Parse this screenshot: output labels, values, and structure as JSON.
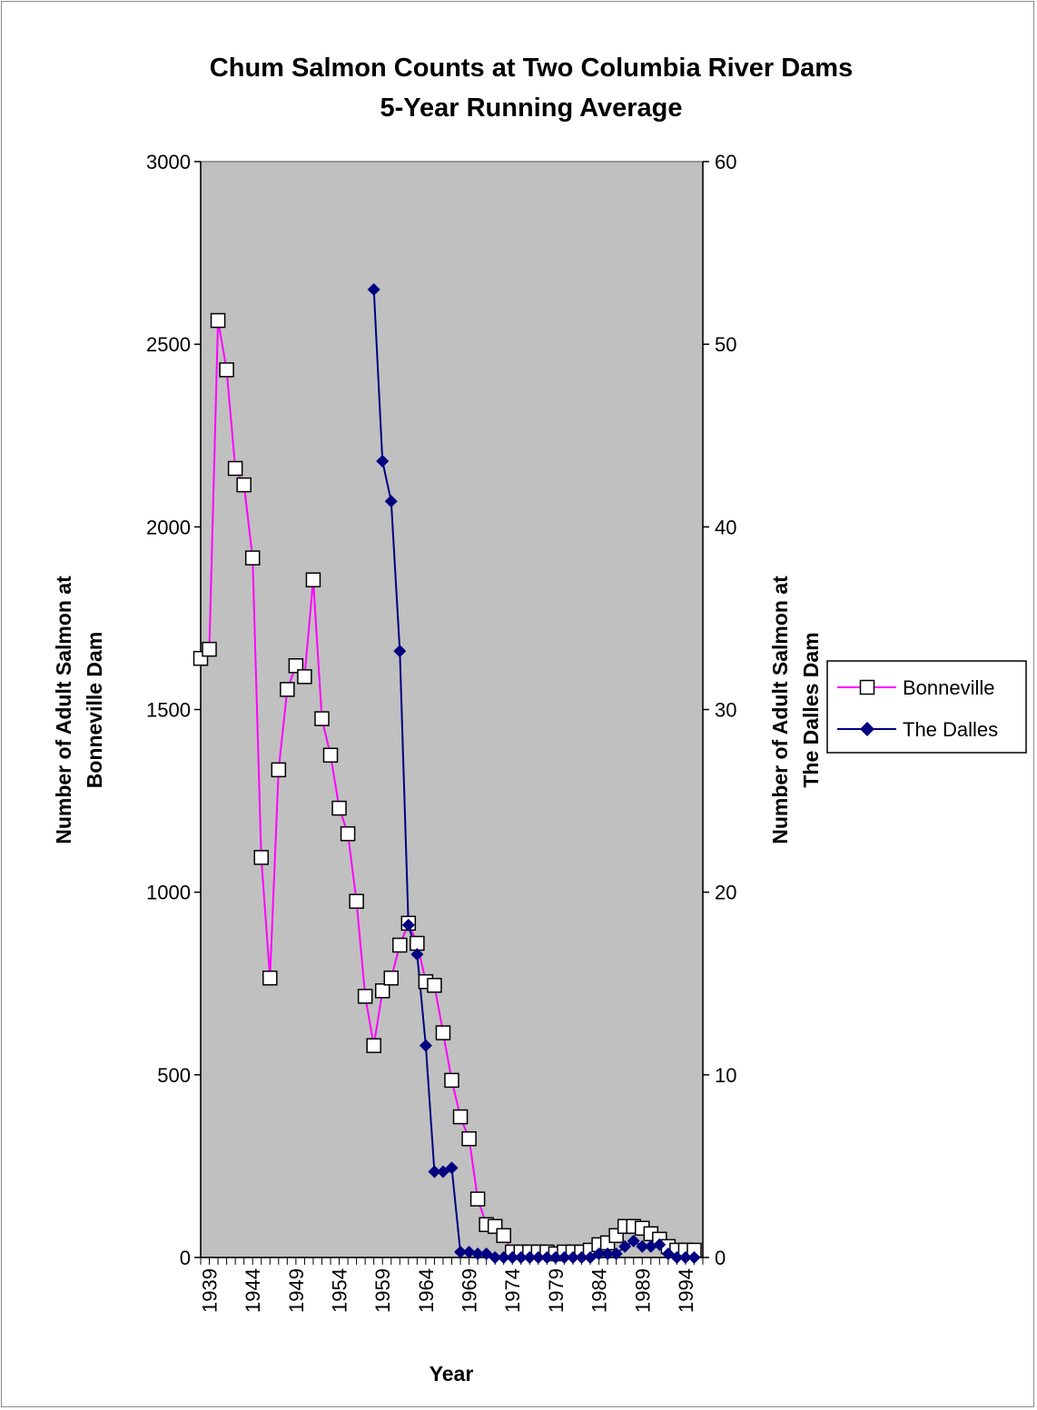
{
  "chart_data": {
    "type": "line",
    "title_lines": [
      "Chum Salmon Counts at Two Columbia River Dams",
      "5-Year Running Average"
    ],
    "xlabel": "Year",
    "ylabel_left_lines": [
      "Number of Adult Salmon at",
      "Bonneville Dam"
    ],
    "ylabel_right_lines": [
      "Number of Adult Salmon at",
      "The Dalles Dam"
    ],
    "ylim_left": [
      0,
      3000
    ],
    "ylim_right": [
      0,
      60
    ],
    "yticks_left": [
      "0",
      "500",
      "1000",
      "1500",
      "2000",
      "2500",
      "3000"
    ],
    "yticks_right": [
      "0",
      "10",
      "20",
      "30",
      "40",
      "50",
      "60"
    ],
    "xlim": [
      1938,
      1996
    ],
    "xticks": [
      "1939",
      "1944",
      "1949",
      "1954",
      "1959",
      "1964",
      "1969",
      "1974",
      "1979",
      "1984",
      "1989",
      "1994"
    ],
    "legend_position": "right",
    "series": [
      {
        "name": "Bonneville",
        "axis": "left",
        "color": "#ff00ff",
        "marker": "open-square",
        "x": [
          1938,
          1939,
          1940,
          1941,
          1942,
          1943,
          1944,
          1945,
          1946,
          1947,
          1948,
          1949,
          1950,
          1951,
          1952,
          1953,
          1954,
          1955,
          1956,
          1957,
          1958,
          1959,
          1960,
          1961,
          1962,
          1963,
          1964,
          1965,
          1966,
          1967,
          1968,
          1969,
          1970,
          1971,
          1972,
          1973,
          1974,
          1975,
          1976,
          1977,
          1978,
          1979,
          1980,
          1981,
          1982,
          1983,
          1984,
          1985,
          1986,
          1987,
          1988,
          1989,
          1990,
          1991,
          1992,
          1993,
          1994,
          1995
        ],
        "y": [
          1640,
          1665,
          2565,
          2430,
          2160,
          2115,
          1915,
          1095,
          765,
          1335,
          1555,
          1620,
          1590,
          1855,
          1475,
          1375,
          1230,
          1160,
          975,
          715,
          580,
          730,
          765,
          855,
          915,
          860,
          755,
          745,
          615,
          485,
          385,
          325,
          160,
          90,
          85,
          60,
          15,
          15,
          15,
          15,
          15,
          10,
          15,
          15,
          15,
          20,
          35,
          40,
          60,
          85,
          85,
          80,
          65,
          50,
          30,
          20,
          20,
          20
        ]
      },
      {
        "name": "The Dalles",
        "axis": "right",
        "color": "#000080",
        "marker": "filled-diamond",
        "x": [
          1958,
          1959,
          1960,
          1961,
          1962,
          1963,
          1964,
          1965,
          1966,
          1967,
          1968,
          1969,
          1970,
          1971,
          1972,
          1973,
          1974,
          1975,
          1976,
          1977,
          1978,
          1979,
          1980,
          1981,
          1982,
          1983,
          1984,
          1985,
          1986,
          1987,
          1988,
          1989,
          1990,
          1991,
          1992,
          1993,
          1994,
          1995
        ],
        "y": [
          53,
          43.6,
          41.4,
          33.2,
          18.2,
          16.6,
          11.6,
          4.7,
          4.7,
          4.9,
          0.3,
          0.3,
          0.2,
          0.2,
          0,
          0,
          0,
          0,
          0,
          0,
          0,
          0,
          0,
          0,
          0,
          0,
          0.2,
          0.2,
          0.2,
          0.6,
          0.9,
          0.6,
          0.6,
          0.7,
          0.2,
          0,
          0,
          0
        ]
      }
    ]
  }
}
